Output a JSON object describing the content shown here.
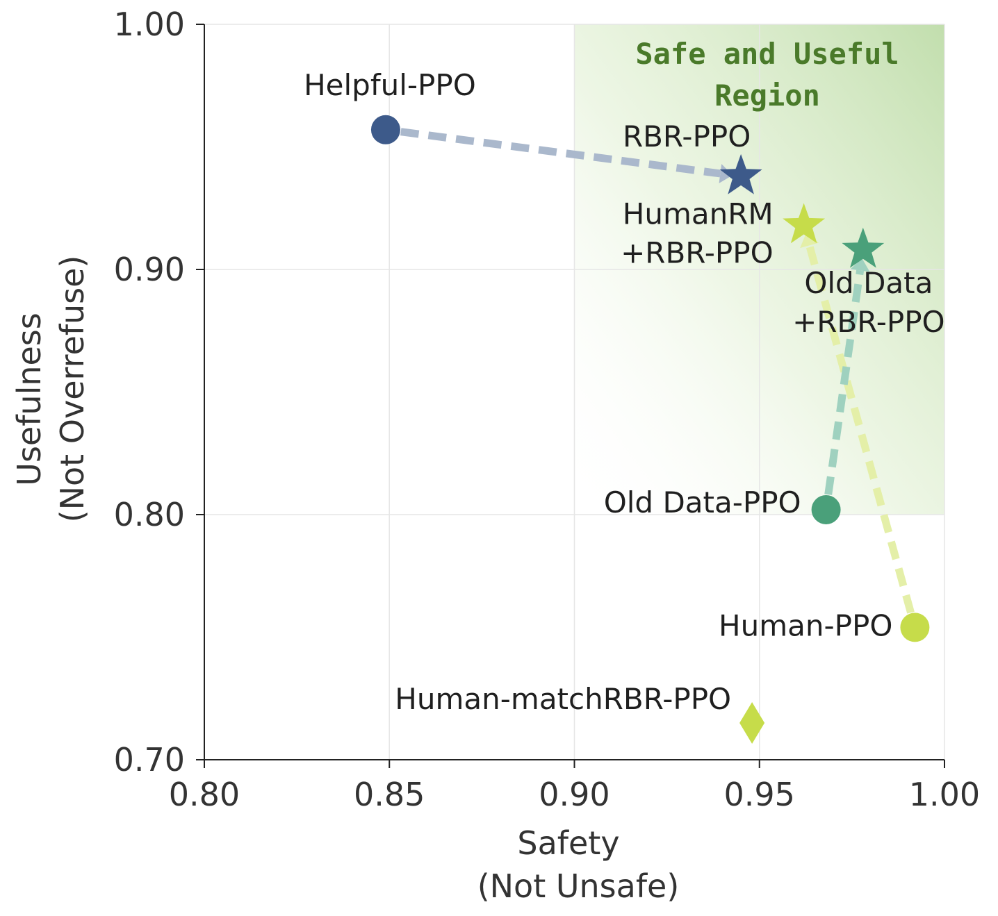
{
  "chart_data": {
    "type": "scatter",
    "xlabel": [
      "Safety",
      "(Not Unsafe)"
    ],
    "ylabel": [
      "Usefulness",
      "(Not Overrefuse)"
    ],
    "xlim": [
      0.8,
      1.0
    ],
    "ylim": [
      0.7,
      1.0
    ],
    "x_ticks": [
      "0.80",
      "0.85",
      "0.90",
      "0.95",
      "1.00"
    ],
    "y_ticks": [
      "0.70",
      "0.80",
      "0.90",
      "1.00"
    ],
    "x_tick_values": [
      0.8,
      0.85,
      0.9,
      0.95,
      1.0
    ],
    "y_tick_values": [
      0.7,
      0.8,
      0.9,
      1.0
    ],
    "grid": true,
    "region": {
      "label": [
        "Safe and Useful",
        "Region"
      ],
      "color": "#8fc36a"
    },
    "points": [
      {
        "name": "Helpful-PPO",
        "label_lines": [
          "Helpful-PPO"
        ],
        "x": 0.849,
        "y": 0.957,
        "marker": "circle",
        "color": "#3d5a8a"
      },
      {
        "name": "RBR-PPO",
        "label_lines": [
          "RBR-PPO"
        ],
        "x": 0.945,
        "y": 0.938,
        "marker": "star",
        "color": "#3d5a8a"
      },
      {
        "name": "HumanRM+RBR-PPO",
        "label_lines": [
          "HumanRM",
          "+RBR-PPO"
        ],
        "x": 0.962,
        "y": 0.918,
        "marker": "star",
        "color": "#c6dc4a"
      },
      {
        "name": "Old Data+RBR-PPO",
        "label_lines": [
          "Old Data",
          "+RBR-PPO"
        ],
        "x": 0.978,
        "y": 0.908,
        "marker": "star",
        "color": "#4aa07a"
      },
      {
        "name": "Old Data-PPO",
        "label_lines": [
          "Old Data-PPO"
        ],
        "x": 0.968,
        "y": 0.802,
        "marker": "circle",
        "color": "#4aa07a"
      },
      {
        "name": "Human-PPO",
        "label_lines": [
          "Human-PPO"
        ],
        "x": 0.992,
        "y": 0.754,
        "marker": "circle",
        "color": "#c6dc4a"
      },
      {
        "name": "Human-matchRBR-PPO",
        "label_lines": [
          "Human-matchRBR-PPO"
        ],
        "x": 0.948,
        "y": 0.715,
        "marker": "diamond",
        "color": "#c6dc4a"
      }
    ],
    "arrows": [
      {
        "from": "Helpful-PPO",
        "to": "RBR-PPO",
        "color": "#aab8cc"
      },
      {
        "from": "Human-PPO",
        "to": "HumanRM+RBR-PPO",
        "color": "#e4efa8"
      },
      {
        "from": "Old Data-PPO",
        "to": "Old Data+RBR-PPO",
        "color": "#9fd1bf"
      }
    ]
  }
}
